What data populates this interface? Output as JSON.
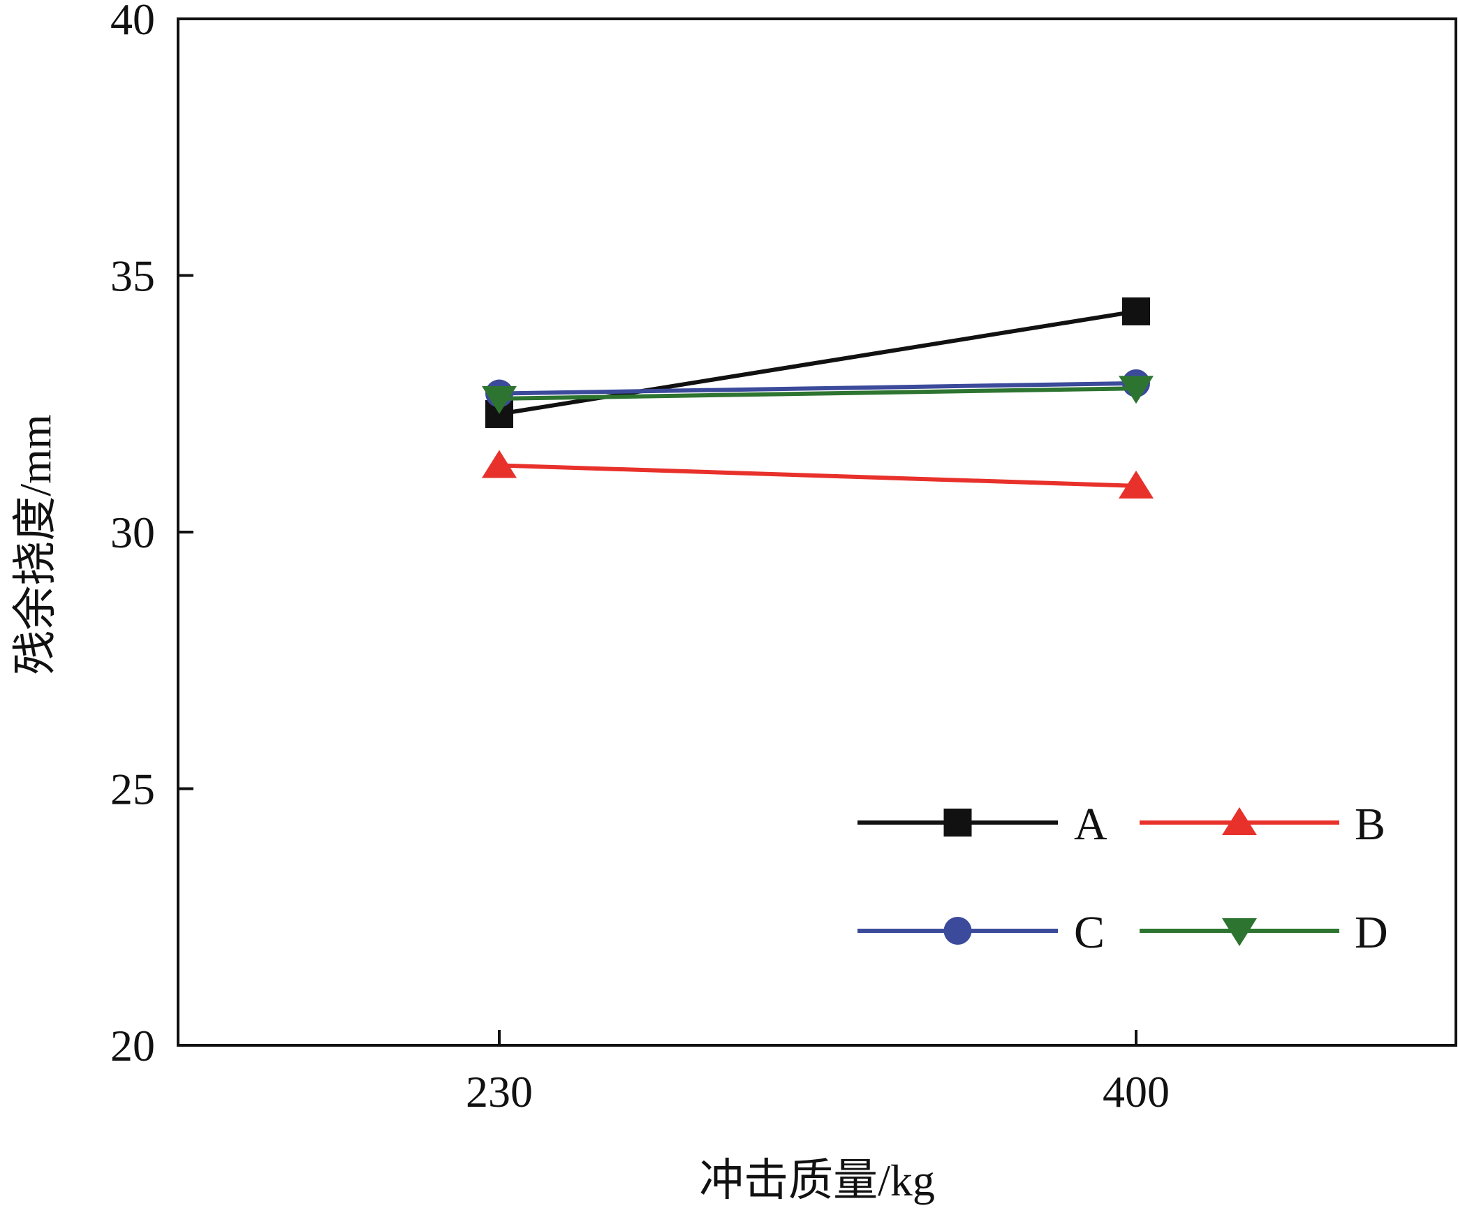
{
  "chart_data": {
    "type": "line",
    "title": "",
    "xlabel": "冲击质量/kg",
    "ylabel": "残余挠度/mm",
    "categories": [
      "230",
      "400"
    ],
    "ylim": [
      20,
      40
    ],
    "yticks": [
      "20",
      "25",
      "30",
      "35",
      "40"
    ],
    "grid": false,
    "legend": "bottom-right",
    "series": [
      {
        "name": "A",
        "marker": "square",
        "color": "#111111",
        "values": [
          32.3,
          34.3
        ]
      },
      {
        "name": "B",
        "marker": "triangle-up",
        "color": "#e8312b",
        "values": [
          31.3,
          30.9
        ]
      },
      {
        "name": "C",
        "marker": "circle",
        "color": "#3b4a9a",
        "values": [
          32.7,
          32.9
        ]
      },
      {
        "name": "D",
        "marker": "triangle-down",
        "color": "#2e7431",
        "values": [
          32.6,
          32.8
        ]
      }
    ]
  }
}
